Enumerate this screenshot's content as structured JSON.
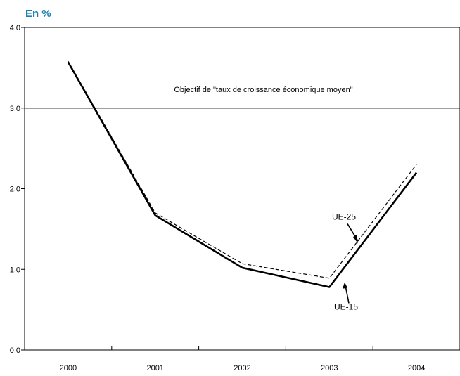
{
  "chart_data": {
    "type": "line",
    "unit_label": "En %",
    "categories": [
      "2000",
      "2001",
      "2002",
      "2003",
      "2004"
    ],
    "y_ticks": [
      "0,0",
      "1,0",
      "2,0",
      "3,0",
      "4,0"
    ],
    "ylim": [
      0,
      4
    ],
    "grid": false,
    "series": [
      {
        "name": "UE-15",
        "values": [
          3.57,
          1.67,
          1.02,
          0.78,
          2.2
        ],
        "style": "solid",
        "color": "#000000"
      },
      {
        "name": "UE-25",
        "values": [
          3.58,
          1.7,
          1.07,
          0.89,
          2.3
        ],
        "style": "dashed",
        "color": "#000000"
      }
    ],
    "reference_line": {
      "value": 3.0,
      "label": "Objectif de \"taux de croissance économique moyen\""
    }
  }
}
